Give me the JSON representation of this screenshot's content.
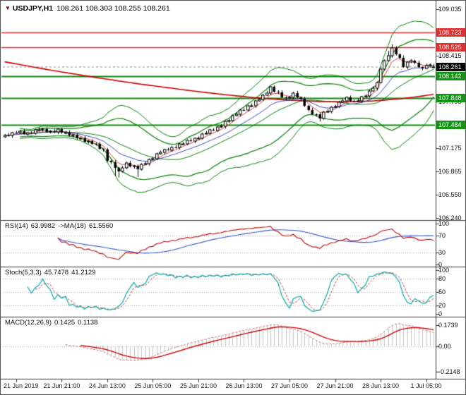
{
  "header": {
    "marker_icon": "▼",
    "symbol": "USDJPY,H1",
    "ohlc": "108.261 108.303 108.255 108.261"
  },
  "colors": {
    "background": "#FFFFFF",
    "bull_candle": "#FFFFFF",
    "bear_candle": "#000000",
    "candle_outline": "#000000",
    "bollinger": "#008000",
    "slow_ma": "#CC0000",
    "fast_ma_red": "#DD2222",
    "fast_ma_blue": "#2233BB",
    "resistance_line": "#D03030",
    "support_line": "#0E8A0E",
    "resistance_box": "#E03030",
    "support_box": "#149414",
    "current_price_box": "#000000",
    "rsi_line": "#C00000",
    "rsi_ma_line": "#3355CC",
    "stoch_k": "#00AAAA",
    "stoch_d": "#CC3333",
    "macd_line": "#D06060",
    "macd_signal": "#CC0000",
    "histogram": "#C6C6C6",
    "level_dotted": "#AAAAAA",
    "axis": "#333333"
  },
  "chart_data": [
    {
      "id": "price",
      "type": "candlestick",
      "symbol": "USDJPY",
      "timeframe": "H1",
      "ylim": [
        106.24,
        109.035
      ],
      "y_ticks": [
        "109.035",
        "108.725",
        "108.415",
        "108.105",
        "107.795",
        "107.485",
        "107.175",
        "106.865",
        "106.550",
        "106.240"
      ],
      "x_tick_labels": [
        "21 Jun 2019",
        "21 Jun 21:00",
        "24 Jun 13:00",
        "25 Jun 05:00",
        "25 Jun 21:00",
        "26 Jun 13:00",
        "27 Jun 05:00",
        "27 Jun 21:00",
        "28 Jun 13:00",
        "1 Jul 05:00"
      ],
      "x_tick_indices": [
        3,
        15,
        27,
        39,
        51,
        63,
        75,
        87,
        99,
        111
      ],
      "hlines": [
        {
          "value": 108.723,
          "label": "108.723",
          "role": "resistance"
        },
        {
          "value": 108.525,
          "label": "108.525",
          "role": "resistance"
        },
        {
          "value": 108.142,
          "label": "108.142",
          "role": "support"
        },
        {
          "value": 107.848,
          "label": "107.848",
          "role": "support"
        },
        {
          "value": 107.484,
          "label": "107.484",
          "role": "support"
        }
      ],
      "current_price": {
        "value": 108.261,
        "label": "108.261"
      },
      "overlays": {
        "bollinger": {
          "period": 20,
          "deviations": [
            2,
            3
          ]
        },
        "fast_ma_periods": [
          5,
          13
        ],
        "slow_ma_points": [
          [
            0,
            108.33
          ],
          [
            12,
            108.22
          ],
          [
            24,
            108.12
          ],
          [
            36,
            108.03
          ],
          [
            48,
            107.95
          ],
          [
            58,
            107.89
          ],
          [
            66,
            107.85
          ],
          [
            74,
            107.82
          ],
          [
            82,
            107.8
          ],
          [
            90,
            107.795
          ],
          [
            97,
            107.805
          ],
          [
            104,
            107.835
          ],
          [
            109,
            107.865
          ],
          [
            113,
            107.895
          ]
        ]
      },
      "candles": [
        [
          107.33,
          107.364,
          107.31,
          107.348
        ],
        [
          107.348,
          107.378,
          107.329,
          107.341
        ],
        [
          107.341,
          107.393,
          107.313,
          107.383
        ],
        [
          107.383,
          107.405,
          107.368,
          107.382
        ],
        [
          107.382,
          107.415,
          107.362,
          107.399
        ],
        [
          107.399,
          107.429,
          107.355,
          107.367
        ],
        [
          107.367,
          107.388,
          107.339,
          107.378
        ],
        [
          107.378,
          107.4,
          107.361,
          107.375
        ],
        [
          107.375,
          107.435,
          107.355,
          107.419
        ],
        [
          107.419,
          107.452,
          107.407,
          107.422
        ],
        [
          107.422,
          107.442,
          107.394,
          107.432
        ],
        [
          107.432,
          107.454,
          107.38,
          107.394
        ],
        [
          107.394,
          107.414,
          107.374,
          107.398
        ],
        [
          107.398,
          107.428,
          107.376,
          107.388
        ],
        [
          107.388,
          107.436,
          107.36,
          107.426
        ],
        [
          107.426,
          107.448,
          107.365,
          107.379
        ],
        [
          107.379,
          107.401,
          107.359,
          107.385
        ],
        [
          107.385,
          107.415,
          107.332,
          107.344
        ],
        [
          107.344,
          107.361,
          107.316,
          107.351
        ],
        [
          107.351,
          107.373,
          107.291,
          107.305
        ],
        [
          107.305,
          107.322,
          107.285,
          107.306
        ],
        [
          107.306,
          107.336,
          107.25,
          107.262
        ],
        [
          107.262,
          107.282,
          107.234,
          107.272
        ],
        [
          107.272,
          107.294,
          107.22,
          107.234
        ],
        [
          107.234,
          107.25,
          107.208,
          107.228
        ],
        [
          107.228,
          107.258,
          107.156,
          107.168
        ],
        [
          107.168,
          107.178,
          107.128,
          107.156
        ],
        [
          107.156,
          107.178,
          106.988,
          107.002
        ],
        [
          107.002,
          107.018,
          106.962,
          106.982
        ],
        [
          106.982,
          107.012,
          106.8,
          106.914
        ],
        [
          106.914,
          106.924,
          106.78,
          106.862
        ],
        [
          106.862,
          106.935,
          106.848,
          106.913
        ],
        [
          106.913,
          106.992,
          106.893,
          106.976
        ],
        [
          106.976,
          107.006,
          106.917,
          106.929
        ],
        [
          106.929,
          106.945,
          106.901,
          106.935
        ],
        [
          106.935,
          106.957,
          106.79,
          106.894
        ],
        [
          106.894,
          106.974,
          106.874,
          106.958
        ],
        [
          106.958,
          106.998,
          106.946,
          106.968
        ],
        [
          106.968,
          107.036,
          106.94,
          107.026
        ],
        [
          107.026,
          107.057,
          107.012,
          107.035
        ],
        [
          107.035,
          107.115,
          107.015,
          107.099
        ],
        [
          107.099,
          107.144,
          107.087,
          107.114
        ],
        [
          107.114,
          107.168,
          107.086,
          107.158
        ],
        [
          107.158,
          107.18,
          107.134,
          107.148
        ],
        [
          107.148,
          107.202,
          107.128,
          107.186
        ],
        [
          107.186,
          107.216,
          107.17,
          107.182
        ],
        [
          107.182,
          107.242,
          107.154,
          107.232
        ],
        [
          107.232,
          107.256,
          107.218,
          107.234
        ],
        [
          107.234,
          107.294,
          107.214,
          107.278
        ],
        [
          107.278,
          107.308,
          107.256,
          107.268
        ],
        [
          107.268,
          107.316,
          107.24,
          107.306
        ],
        [
          107.306,
          107.331,
          107.292,
          107.309
        ],
        [
          107.309,
          107.381,
          107.289,
          107.365
        ],
        [
          107.365,
          107.404,
          107.353,
          107.374
        ],
        [
          107.374,
          107.431,
          107.346,
          107.421
        ],
        [
          107.421,
          107.443,
          107.401,
          107.415
        ],
        [
          107.415,
          107.472,
          107.395,
          107.456
        ],
        [
          107.456,
          107.495,
          107.444,
          107.465
        ],
        [
          107.465,
          107.539,
          107.437,
          107.529
        ],
        [
          107.529,
          107.566,
          107.515,
          107.544
        ],
        [
          107.544,
          107.627,
          107.524,
          107.611
        ],
        [
          107.611,
          107.655,
          107.599,
          107.625
        ],
        [
          107.625,
          107.696,
          107.597,
          107.686
        ],
        [
          107.686,
          107.708,
          107.671,
          107.685
        ],
        [
          107.685,
          107.755,
          107.665,
          107.739
        ],
        [
          107.739,
          107.774,
          107.727,
          107.744
        ],
        [
          107.744,
          107.821,
          107.716,
          107.811
        ],
        [
          107.811,
          107.847,
          107.797,
          107.825
        ],
        [
          107.825,
          107.902,
          107.805,
          107.886
        ],
        [
          107.886,
          107.942,
          107.874,
          107.912
        ],
        [
          107.912,
          108.002,
          107.884,
          107.992
        ],
        [
          107.992,
          108.014,
          107.92,
          107.934
        ],
        [
          107.934,
          107.95,
          107.898,
          107.918
        ],
        [
          107.918,
          107.948,
          107.846,
          107.858
        ],
        [
          107.858,
          107.868,
          107.818,
          107.846
        ],
        [
          107.846,
          107.874,
          107.832,
          107.852
        ],
        [
          107.852,
          107.928,
          107.832,
          107.912
        ],
        [
          107.912,
          107.942,
          107.842,
          107.854
        ],
        [
          107.854,
          107.864,
          107.81,
          107.838
        ],
        [
          107.838,
          107.86,
          107.724,
          107.738
        ],
        [
          107.738,
          107.754,
          107.666,
          107.686
        ],
        [
          107.686,
          107.716,
          107.617,
          107.629
        ],
        [
          107.629,
          107.639,
          107.597,
          107.625
        ],
        [
          107.625,
          107.647,
          107.532,
          107.574
        ],
        [
          107.574,
          107.674,
          107.554,
          107.658
        ],
        [
          107.658,
          107.698,
          107.646,
          107.668
        ],
        [
          107.668,
          107.736,
          107.64,
          107.726
        ],
        [
          107.726,
          107.754,
          107.712,
          107.732
        ],
        [
          107.732,
          107.808,
          107.712,
          107.792
        ],
        [
          107.792,
          107.834,
          107.78,
          107.804
        ],
        [
          107.804,
          107.868,
          107.776,
          107.858
        ],
        [
          107.858,
          107.88,
          107.794,
          107.808
        ],
        [
          107.808,
          107.824,
          107.786,
          107.806
        ],
        [
          107.806,
          107.836,
          107.794,
          107.809
        ],
        [
          107.809,
          107.875,
          107.781,
          107.865
        ],
        [
          107.865,
          107.896,
          107.851,
          107.874
        ],
        [
          107.874,
          107.954,
          107.854,
          107.938
        ],
        [
          107.938,
          108.003,
          107.926,
          107.973
        ],
        [
          107.973,
          108.066,
          107.945,
          108.056
        ],
        [
          108.056,
          108.254,
          108.042,
          108.232
        ],
        [
          108.232,
          108.363,
          108.212,
          108.347
        ],
        [
          108.347,
          108.477,
          108.335,
          108.414
        ],
        [
          108.414,
          108.565,
          108.386,
          108.518
        ],
        [
          108.518,
          108.54,
          108.414,
          108.428
        ],
        [
          108.428,
          108.444,
          108.366,
          108.386
        ],
        [
          108.386,
          108.416,
          108.25,
          108.262
        ],
        [
          108.262,
          108.337,
          108.234,
          108.327
        ],
        [
          108.327,
          108.366,
          108.313,
          108.344
        ],
        [
          108.344,
          108.36,
          108.298,
          108.318
        ],
        [
          108.318,
          108.348,
          108.246,
          108.258
        ],
        [
          108.258,
          108.268,
          108.218,
          108.246
        ],
        [
          108.246,
          108.304,
          108.232,
          108.282
        ],
        [
          108.282,
          108.308,
          108.262,
          108.292
        ],
        [
          108.261,
          108.303,
          108.255,
          108.261
        ]
      ]
    },
    {
      "id": "rsi",
      "type": "line",
      "name": "RSI(14)",
      "value": "63.9982",
      "ma_label": "->MA(18)",
      "ma_value": "61.5560",
      "params": {
        "period": 14,
        "ma_period": 18
      },
      "ylim": [
        0,
        100
      ],
      "levels": [
        70,
        30
      ],
      "y_ticks": [
        "100",
        "70",
        "30",
        "0"
      ]
    },
    {
      "id": "stochastic",
      "type": "line",
      "name": "Stoch(5,3,3)",
      "value": "45.7478",
      "signal_value": "41.2129",
      "params": {
        "k": 5,
        "d": 3,
        "slowing": 3
      },
      "ylim": [
        0,
        100
      ],
      "levels": [
        80,
        50,
        20
      ],
      "y_ticks": [
        "100",
        "80",
        "50",
        "20",
        "0"
      ]
    },
    {
      "id": "macd",
      "type": "histogram_line",
      "name": "MACD(12,26,9)",
      "value": "0.1425",
      "signal_value": "0.1138",
      "params": {
        "fast": 12,
        "slow": 26,
        "signal": 9
      },
      "ylim": [
        -0.26,
        0.22
      ],
      "y_ticks": [
        "0.1739",
        "0.00",
        "-0.2148"
      ]
    }
  ]
}
